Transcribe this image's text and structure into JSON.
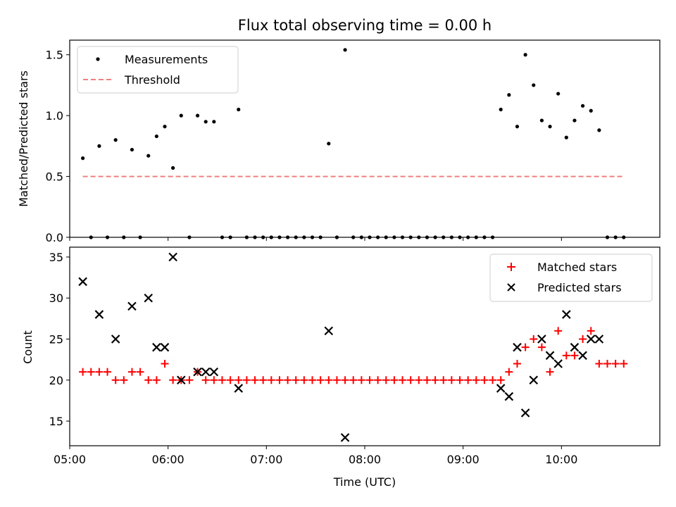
{
  "chart_data": [
    {
      "type": "scatter",
      "title": "Flux total observing time = 0.00 h",
      "xlabel": "",
      "ylabel": "Matched/Predicted stars",
      "xlim": [
        "05:00",
        "11:00"
      ],
      "ylim": [
        0,
        1.62
      ],
      "yticks": [
        "0.0",
        "0.5",
        "1.0",
        "1.5"
      ],
      "legend_position": "top-left",
      "series": [
        {
          "name": "Measurements",
          "marker": "dot",
          "color": "#000000",
          "points": [
            [
              "05:08",
              0.65
            ],
            [
              "05:13",
              0.0
            ],
            [
              "05:18",
              0.75
            ],
            [
              "05:23",
              0.0
            ],
            [
              "05:28",
              0.8
            ],
            [
              "05:33",
              0.0
            ],
            [
              "05:38",
              0.72
            ],
            [
              "05:43",
              0.0
            ],
            [
              "05:48",
              0.67
            ],
            [
              "05:53",
              0.83
            ],
            [
              "05:58",
              0.91
            ],
            [
              "06:03",
              0.57
            ],
            [
              "06:08",
              1.0
            ],
            [
              "06:13",
              0.0
            ],
            [
              "06:18",
              1.0
            ],
            [
              "06:23",
              0.95
            ],
            [
              "06:28",
              0.95
            ],
            [
              "06:33",
              0.0
            ],
            [
              "06:38",
              0.0
            ],
            [
              "06:43",
              1.05
            ],
            [
              "06:48",
              0.0
            ],
            [
              "06:53",
              0.0
            ],
            [
              "06:58",
              0.0
            ],
            [
              "07:03",
              0.0
            ],
            [
              "07:08",
              0.0
            ],
            [
              "07:13",
              0.0
            ],
            [
              "07:18",
              0.0
            ],
            [
              "07:23",
              0.0
            ],
            [
              "07:28",
              0.0
            ],
            [
              "07:33",
              0.0
            ],
            [
              "07:38",
              0.77
            ],
            [
              "07:43",
              0.0
            ],
            [
              "07:48",
              1.54
            ],
            [
              "07:53",
              0.0
            ],
            [
              "07:58",
              0.0
            ],
            [
              "08:03",
              0.0
            ],
            [
              "08:08",
              0.0
            ],
            [
              "08:13",
              0.0
            ],
            [
              "08:18",
              0.0
            ],
            [
              "08:23",
              0.0
            ],
            [
              "08:28",
              0.0
            ],
            [
              "08:33",
              0.0
            ],
            [
              "08:38",
              0.0
            ],
            [
              "08:43",
              0.0
            ],
            [
              "08:48",
              0.0
            ],
            [
              "08:53",
              0.0
            ],
            [
              "08:58",
              0.0
            ],
            [
              "09:03",
              0.0
            ],
            [
              "09:08",
              0.0
            ],
            [
              "09:13",
              0.0
            ],
            [
              "09:18",
              0.0
            ],
            [
              "09:23",
              1.05
            ],
            [
              "09:28",
              1.17
            ],
            [
              "09:33",
              0.91
            ],
            [
              "09:38",
              1.5
            ],
            [
              "09:43",
              1.25
            ],
            [
              "09:48",
              0.96
            ],
            [
              "09:53",
              0.91
            ],
            [
              "09:58",
              1.18
            ],
            [
              "10:03",
              0.82
            ],
            [
              "10:08",
              0.96
            ],
            [
              "10:13",
              1.08
            ],
            [
              "10:18",
              1.04
            ],
            [
              "10:23",
              0.88
            ],
            [
              "10:28",
              0.0
            ],
            [
              "10:33",
              0.0
            ],
            [
              "10:38",
              0.0
            ]
          ]
        },
        {
          "name": "Threshold",
          "marker": "dashed-line",
          "color": "#f08080",
          "points": [
            [
              "05:08",
              0.5
            ],
            [
              "10:38",
              0.5
            ]
          ]
        }
      ]
    },
    {
      "type": "scatter",
      "title": "",
      "xlabel": "Time (UTC)",
      "ylabel": "Count",
      "xlim": [
        "05:00",
        "11:00"
      ],
      "ylim": [
        12,
        36.2
      ],
      "xticks": [
        "05:00",
        "06:00",
        "07:00",
        "08:00",
        "09:00",
        "10:00"
      ],
      "yticks": [
        "15",
        "20",
        "25",
        "30",
        "35"
      ],
      "legend_position": "top-right",
      "series": [
        {
          "name": "Matched stars",
          "marker": "plus",
          "color": "#ff0000",
          "points": [
            [
              "05:08",
              21
            ],
            [
              "05:13",
              21
            ],
            [
              "05:18",
              21
            ],
            [
              "05:23",
              21
            ],
            [
              "05:28",
              20
            ],
            [
              "05:33",
              20
            ],
            [
              "05:38",
              21
            ],
            [
              "05:43",
              21
            ],
            [
              "05:48",
              20
            ],
            [
              "05:53",
              20
            ],
            [
              "05:58",
              22
            ],
            [
              "06:03",
              20
            ],
            [
              "06:08",
              20
            ],
            [
              "06:13",
              20
            ],
            [
              "06:18",
              21
            ],
            [
              "06:23",
              20
            ],
            [
              "06:28",
              20
            ],
            [
              "06:33",
              20
            ],
            [
              "06:38",
              20
            ],
            [
              "06:43",
              20
            ],
            [
              "06:48",
              20
            ],
            [
              "06:53",
              20
            ],
            [
              "06:58",
              20
            ],
            [
              "07:03",
              20
            ],
            [
              "07:08",
              20
            ],
            [
              "07:13",
              20
            ],
            [
              "07:18",
              20
            ],
            [
              "07:23",
              20
            ],
            [
              "07:28",
              20
            ],
            [
              "07:33",
              20
            ],
            [
              "07:38",
              20
            ],
            [
              "07:43",
              20
            ],
            [
              "07:48",
              20
            ],
            [
              "07:53",
              20
            ],
            [
              "07:58",
              20
            ],
            [
              "08:03",
              20
            ],
            [
              "08:08",
              20
            ],
            [
              "08:13",
              20
            ],
            [
              "08:18",
              20
            ],
            [
              "08:23",
              20
            ],
            [
              "08:28",
              20
            ],
            [
              "08:33",
              20
            ],
            [
              "08:38",
              20
            ],
            [
              "08:43",
              20
            ],
            [
              "08:48",
              20
            ],
            [
              "08:53",
              20
            ],
            [
              "08:58",
              20
            ],
            [
              "09:03",
              20
            ],
            [
              "09:08",
              20
            ],
            [
              "09:13",
              20
            ],
            [
              "09:18",
              20
            ],
            [
              "09:23",
              20
            ],
            [
              "09:28",
              21
            ],
            [
              "09:33",
              22
            ],
            [
              "09:38",
              24
            ],
            [
              "09:43",
              25
            ],
            [
              "09:48",
              24
            ],
            [
              "09:53",
              21
            ],
            [
              "09:58",
              26
            ],
            [
              "10:03",
              23
            ],
            [
              "10:08",
              23
            ],
            [
              "10:13",
              25
            ],
            [
              "10:18",
              26
            ],
            [
              "10:23",
              22
            ],
            [
              "10:28",
              22
            ],
            [
              "10:33",
              22
            ],
            [
              "10:38",
              22
            ]
          ]
        },
        {
          "name": "Predicted stars",
          "marker": "x",
          "color": "#000000",
          "points": [
            [
              "05:08",
              32
            ],
            [
              "05:18",
              28
            ],
            [
              "05:28",
              25
            ],
            [
              "05:38",
              29
            ],
            [
              "05:48",
              30
            ],
            [
              "05:53",
              24
            ],
            [
              "05:58",
              24
            ],
            [
              "06:03",
              35
            ],
            [
              "06:08",
              20
            ],
            [
              "06:18",
              21
            ],
            [
              "06:23",
              21
            ],
            [
              "06:28",
              21
            ],
            [
              "06:43",
              19
            ],
            [
              "07:38",
              26
            ],
            [
              "07:48",
              13
            ],
            [
              "09:23",
              19
            ],
            [
              "09:28",
              18
            ],
            [
              "09:33",
              24
            ],
            [
              "09:38",
              16
            ],
            [
              "09:43",
              20
            ],
            [
              "09:48",
              25
            ],
            [
              "09:53",
              23
            ],
            [
              "09:58",
              22
            ],
            [
              "10:03",
              28
            ],
            [
              "10:08",
              24
            ],
            [
              "10:13",
              23
            ],
            [
              "10:18",
              25
            ],
            [
              "10:23",
              25
            ]
          ]
        }
      ]
    }
  ]
}
